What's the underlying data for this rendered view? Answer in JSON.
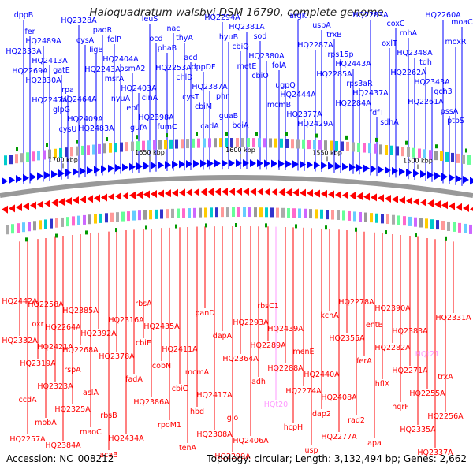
{
  "title": "Haloquadratum walsbyi DSM 16790, complete genome",
  "footer": {
    "accession": "Accession: NC_008212",
    "summary": "Topology: circular; Length: 3,132,494 bp; Genes: 2,662"
  },
  "kbp_ticks": [
    "1700 kbp",
    "1650 kbp",
    "1600 kbp",
    "1550 kbp",
    "1500 kbp"
  ],
  "colors": {
    "forward": "#0000ff",
    "reverse": "#ff0000",
    "rna": "#ff99ff",
    "backbone": "#999999",
    "tick": "#009900"
  },
  "genes_top": [
    "dppB",
    "HQ2489A",
    "gatE",
    "HQ2464A",
    "HQ2483A",
    "folP",
    "psmA2",
    "cinA",
    "fumC",
    "thyA",
    "dppDF",
    "phr",
    "boiA",
    "sod",
    "folA",
    "HQ2444A",
    "HQ2429A",
    "trxB",
    "HQ2443A",
    "HQ2437A",
    "sdhA",
    "rnhA",
    "tdh",
    "gch3",
    "ptpS",
    "fer",
    "HQ2413A",
    "rpa",
    "HQ2409A",
    "padR",
    "HQ2404A",
    "HQ2403A",
    "HQ2398A",
    "nac",
    "acd",
    "HQ2387A",
    "guaB",
    "HQ2381A",
    "HQ2380A",
    "ugpQ",
    "HQ2377A",
    "uspA",
    "rps15p",
    "rps3aR",
    "fdfT",
    "coxC",
    "HQ2348A",
    "HQ2343A",
    "pssA",
    "moaC",
    "HQ2333A",
    "HQ2330A",
    "glpG",
    "HQ2328A",
    "ligB",
    "msrA",
    "epf",
    "leuS",
    "phaB",
    "chlD",
    "cbiM",
    "HQ2294A",
    "cbiQ",
    "cbiO",
    "mcmB",
    "argK",
    "HQ2287A",
    "HQ2285A",
    "HQ2284A",
    "HQ2283A",
    "oxlT",
    "HQ2262A",
    "HQ2261A",
    "HQ2260A",
    "moxR",
    "HQ2269A",
    "HQ2247A",
    "cysU",
    "cysA",
    "HQ2243A",
    "nyuA",
    "gufA",
    "ocd",
    "HQ2253A",
    "cysT",
    "cadA",
    "hyuB",
    "metE"
  ],
  "genes_bottom": [
    "HQ2442A",
    "oxr",
    "HQ2421A",
    "rspA",
    "aslA",
    "rbsB",
    "HQ2434A",
    "rbsA",
    "HQ2435A",
    "HQ2411A",
    "mcmA",
    "HQ2417A",
    "glo",
    "HQ2406A",
    "rbsC1",
    "HQ2439A",
    "menE",
    "HQ2440A",
    "HQ2408A",
    "rad2",
    "apa",
    "HQ2390A",
    "HQ2383A",
    "tRNA_HQ21",
    "trxA",
    "ccdA",
    "mobA",
    "HQ2384A",
    "HQ2385A",
    "HQ2392A",
    "HQ2378A",
    "fadA",
    "HQ2386A",
    "rpoM1",
    "tenA",
    "panD",
    "dapA",
    "HQ2364A",
    "adh",
    "tRNA_HQ20",
    "hcpH",
    "usp",
    "kchA",
    "HQ2355A",
    "ferA",
    "hflX",
    "nqrF",
    "HQ2335A",
    "HQ2337A",
    "HQ2331A",
    "HQ2332A",
    "HQ2319A",
    "HQ2323A",
    "HQ2325A",
    "maoC",
    "acaB",
    "HQ2316A",
    "cbiE",
    "cobN",
    "cbiC",
    "hbd",
    "HQ2308A",
    "HQ2299A",
    "HQ2293A",
    "HQ2289A",
    "HQ2288A",
    "HQ2274A",
    "dap2",
    "HQ2277A",
    "HQ2278A",
    "entB",
    "HQ2282A",
    "HQ2271A",
    "HQ2255A",
    "HQ2256A",
    "HQ2257A",
    "HQ2258A",
    "HQ2264A",
    "HQ2268A"
  ],
  "rna_labels": [
    "HQt21",
    "HQt20"
  ]
}
